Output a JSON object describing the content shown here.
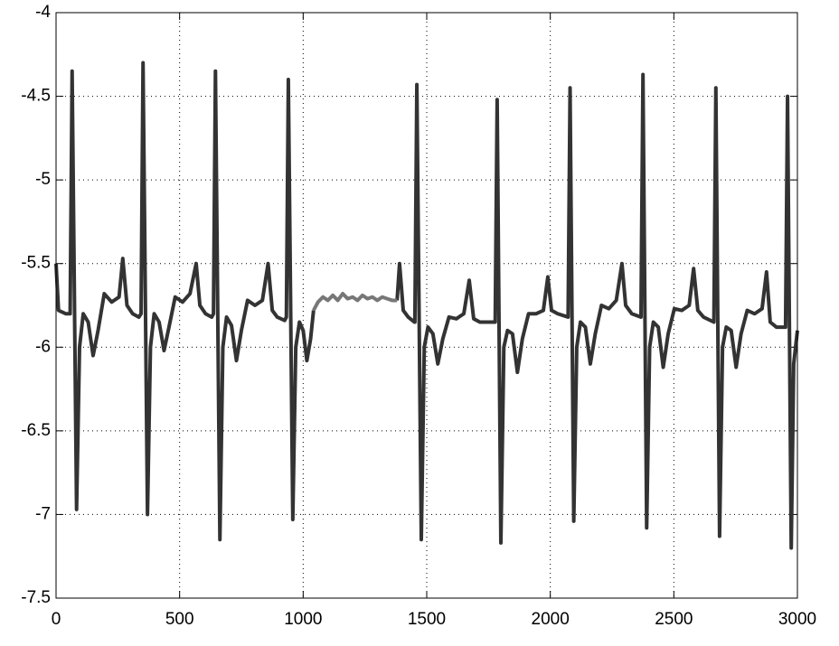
{
  "chart_data": {
    "type": "line",
    "xlim": [
      0,
      3000
    ],
    "xticks": [
      0,
      500,
      1000,
      1500,
      2000,
      2500,
      3000
    ],
    "ylim": [
      -7.5,
      -4
    ],
    "yticks": [
      -7.5,
      -7,
      -6.5,
      -6,
      -5.5,
      -5,
      -4.5,
      -4
    ],
    "grid": true,
    "series": [
      {
        "color": "#333333",
        "x": [
          0,
          10,
          40,
          57,
          65,
          83,
          95,
          110,
          130,
          150,
          170,
          195,
          225,
          255,
          270,
          287,
          310,
          335,
          344,
          352,
          370,
          382,
          397,
          417,
          437,
          457,
          482,
          512,
          542,
          567,
          582,
          605,
          630,
          637,
          645,
          663,
          675,
          690,
          710,
          730,
          750,
          775,
          805,
          835,
          858,
          875,
          895,
          925,
          932,
          940,
          958,
          970,
          985,
          1000,
          1015,
          1030,
          1042,
          1200,
          1380,
          1390,
          1405,
          1425,
          1450,
          1452,
          1460,
          1478,
          1490,
          1505,
          1525,
          1545,
          1565,
          1590,
          1620,
          1650,
          1672,
          1690,
          1715,
          1770,
          1777,
          1785,
          1800,
          1812,
          1827,
          1847,
          1867,
          1887,
          1912,
          1942,
          1972,
          1990,
          2005,
          2030,
          2072,
          2080,
          2095,
          2107,
          2122,
          2142,
          2162,
          2182,
          2207,
          2237,
          2267,
          2290,
          2305,
          2330,
          2367,
          2375,
          2390,
          2402,
          2417,
          2437,
          2457,
          2477,
          2502,
          2532,
          2562,
          2580,
          2597,
          2620,
          2662,
          2670,
          2685,
          2697,
          2712,
          2732,
          2752,
          2772,
          2797,
          2827,
          2857,
          2875,
          2890,
          2915,
          2952,
          2960,
          2975,
          2985,
          3000
        ],
        "values": [
          -5.5,
          -5.78,
          -5.8,
          -5.8,
          -4.35,
          -6.97,
          -6.0,
          -5.8,
          -5.85,
          -6.05,
          -5.9,
          -5.68,
          -5.73,
          -5.7,
          -5.47,
          -5.75,
          -5.8,
          -5.82,
          -5.8,
          -4.3,
          -7.0,
          -6.0,
          -5.8,
          -5.85,
          -6.02,
          -5.88,
          -5.7,
          -5.73,
          -5.68,
          -5.5,
          -5.75,
          -5.8,
          -5.82,
          -5.8,
          -4.35,
          -7.15,
          -6.0,
          -5.82,
          -5.87,
          -6.08,
          -5.9,
          -5.72,
          -5.75,
          -5.72,
          -5.5,
          -5.78,
          -5.82,
          -5.84,
          -5.82,
          -4.4,
          -7.03,
          -6.0,
          -5.85,
          -5.9,
          -6.08,
          -5.95,
          -5.78,
          null,
          -5.72,
          -5.5,
          -5.78,
          -5.82,
          -5.85,
          -5.85,
          -4.43,
          -7.15,
          -6.0,
          -5.88,
          -5.92,
          -6.1,
          -5.95,
          -5.82,
          -5.83,
          -5.8,
          -5.6,
          -5.83,
          -5.85,
          -5.85,
          -5.85,
          -4.52,
          -7.17,
          -6.0,
          -5.9,
          -5.92,
          -6.15,
          -5.95,
          -5.8,
          -5.8,
          -5.78,
          -5.58,
          -5.78,
          -5.8,
          -5.82,
          -4.45,
          -7.04,
          -6.0,
          -5.85,
          -5.88,
          -6.1,
          -5.92,
          -5.75,
          -5.77,
          -5.72,
          -5.5,
          -5.75,
          -5.8,
          -5.82,
          -4.37,
          -7.08,
          -6.0,
          -5.85,
          -5.88,
          -6.12,
          -5.92,
          -5.77,
          -5.78,
          -5.75,
          -5.53,
          -5.78,
          -5.82,
          -5.85,
          -4.45,
          -7.13,
          -6.0,
          -5.88,
          -5.9,
          -6.12,
          -5.92,
          -5.78,
          -5.8,
          -5.77,
          -5.55,
          -5.85,
          -5.88,
          -5.88,
          -4.5,
          -7.2,
          -6.1,
          -5.9
        ]
      },
      {
        "color": "#777777",
        "x": [
          1042,
          1060,
          1080,
          1100,
          1120,
          1140,
          1160,
          1180,
          1200,
          1220,
          1240,
          1260,
          1280,
          1300,
          1320,
          1340,
          1360,
          1380
        ],
        "values": [
          -5.78,
          -5.73,
          -5.7,
          -5.72,
          -5.69,
          -5.72,
          -5.68,
          -5.71,
          -5.7,
          -5.72,
          -5.69,
          -5.71,
          -5.7,
          -5.72,
          -5.7,
          -5.71,
          -5.72,
          -5.72
        ]
      }
    ]
  }
}
